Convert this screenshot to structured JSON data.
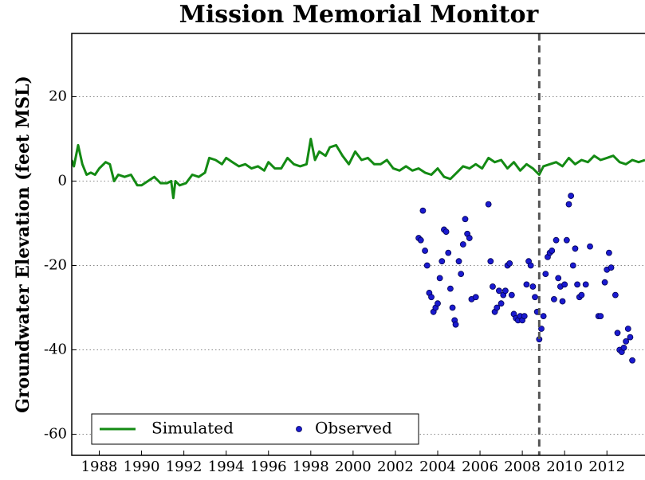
{
  "chart_data": {
    "type": "line",
    "title": "Mission Memorial Monitor",
    "ylabel": "Groundwater Elevation (feet MSL)",
    "xlim": [
      1986.7,
      2013.8
    ],
    "ylim": [
      -65,
      35
    ],
    "xticks": [
      1988,
      1990,
      1992,
      1994,
      1996,
      1998,
      2000,
      2002,
      2004,
      2006,
      2008,
      2010,
      2012
    ],
    "yticks": [
      -60,
      -40,
      -20,
      0,
      20
    ],
    "grid": true,
    "legend": "lower left",
    "vline_x": 2008.8,
    "vline_color": "#555555",
    "series": [
      {
        "name": "Simulated",
        "type": "line",
        "color": "#138a13",
        "x": [
          1986.7,
          1986.8,
          1987.0,
          1987.2,
          1987.4,
          1987.6,
          1987.8,
          1988.0,
          1988.3,
          1988.5,
          1988.7,
          1988.9,
          1989.2,
          1989.5,
          1989.8,
          1990.0,
          1990.3,
          1990.6,
          1990.9,
          1991.2,
          1991.4,
          1991.5,
          1991.6,
          1991.8,
          1992.1,
          1992.4,
          1992.7,
          1993.0,
          1993.2,
          1993.5,
          1993.8,
          1994.0,
          1994.3,
          1994.6,
          1994.9,
          1995.2,
          1995.5,
          1995.8,
          1996.0,
          1996.3,
          1996.6,
          1996.9,
          1997.2,
          1997.5,
          1997.8,
          1998.0,
          1998.2,
          1998.4,
          1998.7,
          1998.9,
          1999.2,
          1999.5,
          1999.8,
          2000.1,
          2000.4,
          2000.7,
          2001.0,
          2001.3,
          2001.6,
          2001.9,
          2002.2,
          2002.5,
          2002.8,
          2003.1,
          2003.4,
          2003.7,
          2004.0,
          2004.3,
          2004.6,
          2004.9,
          2005.2,
          2005.5,
          2005.8,
          2006.1,
          2006.4,
          2006.7,
          2007.0,
          2007.3,
          2007.6,
          2007.9,
          2008.2,
          2008.5,
          2008.8,
          2009.0,
          2009.3,
          2009.6,
          2009.9,
          2010.2,
          2010.5,
          2010.8,
          2011.1,
          2011.4,
          2011.7,
          2012.0,
          2012.3,
          2012.6,
          2012.9,
          2013.2,
          2013.5,
          2013.8
        ],
        "values": [
          5,
          3.5,
          8.5,
          4,
          1.5,
          2,
          1.5,
          3,
          4.5,
          4,
          0,
          1.5,
          1,
          1.5,
          -1,
          -1,
          0,
          1,
          -0.5,
          -0.5,
          0,
          -4,
          0,
          -1,
          -0.5,
          1.5,
          1,
          2,
          5.5,
          5,
          4,
          5.5,
          4.5,
          3.5,
          4,
          3,
          3.5,
          2.5,
          4.5,
          3,
          3,
          5.5,
          4,
          3.5,
          4,
          10,
          5,
          7,
          6,
          8,
          8.5,
          6,
          4,
          7,
          5,
          5.5,
          4,
          4,
          5,
          3,
          2.5,
          3.5,
          2.5,
          3,
          2,
          1.5,
          3,
          1,
          0.5,
          2,
          3.5,
          3,
          4,
          3,
          5.5,
          4.5,
          5,
          3,
          4.5,
          2.5,
          4,
          3,
          1.5,
          3.5,
          4,
          4.5,
          3.5,
          5.5,
          4,
          5,
          4.5,
          6,
          5,
          5.5,
          6,
          4.5,
          4,
          5,
          4.5,
          5
        ]
      },
      {
        "name": "Observed",
        "type": "scatter",
        "color": "#1a1ad0",
        "x": [
          2003.1,
          2003.2,
          2003.3,
          2003.4,
          2003.5,
          2003.6,
          2003.7,
          2003.8,
          2003.9,
          2004.0,
          2004.1,
          2004.2,
          2004.3,
          2004.4,
          2004.5,
          2004.6,
          2004.7,
          2004.8,
          2004.85,
          2005.0,
          2005.1,
          2005.2,
          2005.3,
          2005.4,
          2005.5,
          2005.6,
          2005.8,
          2006.4,
          2006.5,
          2006.6,
          2006.7,
          2006.8,
          2006.9,
          2007.0,
          2007.1,
          2007.2,
          2007.3,
          2007.4,
          2007.5,
          2007.6,
          2007.7,
          2007.8,
          2007.9,
          2008.0,
          2008.1,
          2008.2,
          2008.3,
          2008.4,
          2008.5,
          2008.6,
          2008.7,
          2008.8,
          2008.9,
          2009.0,
          2009.1,
          2009.2,
          2009.3,
          2009.4,
          2009.5,
          2009.6,
          2009.7,
          2009.8,
          2009.9,
          2010.0,
          2010.1,
          2010.2,
          2010.3,
          2010.4,
          2010.5,
          2010.6,
          2010.7,
          2010.8,
          2011.0,
          2011.2,
          2011.6,
          2011.7,
          2011.9,
          2012.0,
          2012.1,
          2012.2,
          2012.4,
          2012.5,
          2012.6,
          2012.7,
          2012.8,
          2012.9,
          2013.0,
          2013.1,
          2013.2
        ],
        "values": [
          -13.5,
          -14,
          -7,
          -16.5,
          -20,
          -26.5,
          -27.5,
          -31,
          -30,
          -29,
          -23,
          -19,
          -11.5,
          -12,
          -17,
          -25.5,
          -30,
          -33,
          -34,
          -19,
          -22,
          -15,
          -9,
          -12.5,
          -13.5,
          -28,
          -27.5,
          -5.5,
          -19,
          -25,
          -31,
          -30,
          -26,
          -29,
          -27,
          -26,
          -20,
          -19.5,
          -27,
          -31.5,
          -32.5,
          -33,
          -32,
          -33,
          -32,
          -24.5,
          -19,
          -20,
          -25,
          -27.5,
          -31,
          -37.5,
          -35,
          -32,
          -22,
          -18,
          -17,
          -16.5,
          -28,
          -14,
          -23,
          -25,
          -28.5,
          -24.5,
          -14,
          -5.5,
          -3.5,
          -20,
          -16,
          -24.5,
          -27.5,
          -27,
          -24.5,
          -15.5,
          -32,
          -32,
          -24,
          -21,
          -17,
          -20.5,
          -27,
          -36,
          -40,
          -40.5,
          -39.5,
          -38,
          -35,
          -37,
          -42.5
        ]
      }
    ]
  }
}
